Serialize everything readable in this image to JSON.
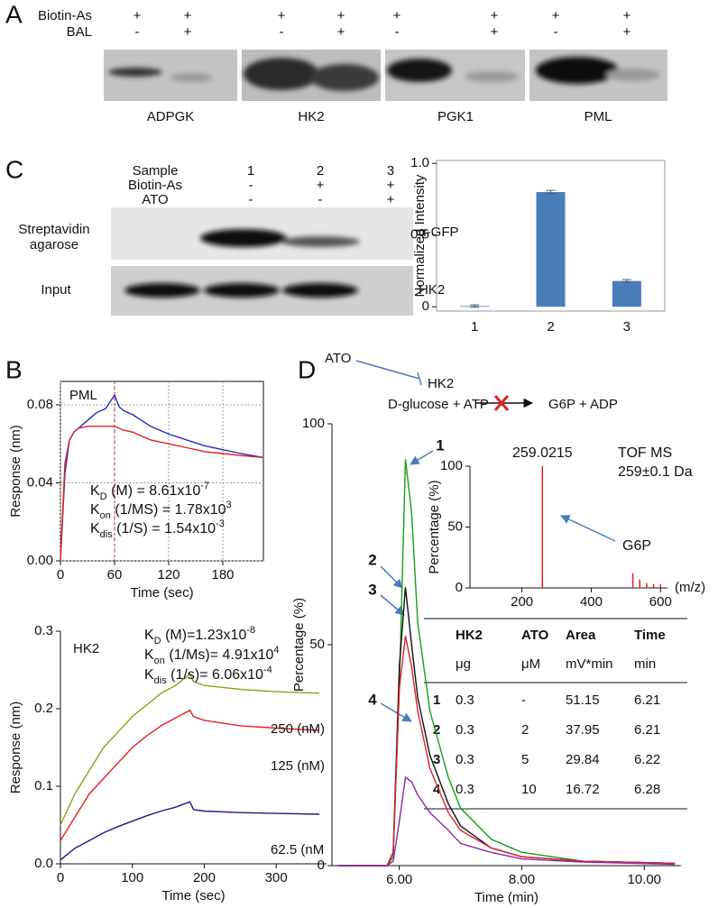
{
  "panel_labels": {
    "a": "A",
    "c": "C",
    "b": "B",
    "d": "D"
  },
  "panel_a": {
    "rows": [
      "Biotin-As",
      "BAL"
    ],
    "lanes": [
      [
        "+",
        "-"
      ],
      [
        "+",
        "+"
      ],
      [
        "+",
        "-"
      ],
      [
        "+",
        "+"
      ],
      [
        "+",
        "-"
      ],
      [
        "+",
        "+"
      ],
      [
        "+",
        "-"
      ],
      [
        "+",
        "+"
      ]
    ],
    "proteins": [
      "ADPGK",
      "HK2",
      "PGK1",
      "PML"
    ]
  },
  "panel_c_blot": {
    "rows": [
      "Sample",
      "Biotin-As",
      "ATO"
    ],
    "lanes": [
      [
        "1",
        "-",
        "-"
      ],
      [
        "2",
        "+",
        "-"
      ],
      [
        "3",
        "+",
        "+"
      ]
    ],
    "left_labels": [
      "Streptavidin",
      "agarose",
      "Input"
    ],
    "right_labels": [
      "α-GFP",
      "HK2"
    ]
  },
  "scheme": {
    "inhibitor": "ATO",
    "enzyme": "HK2",
    "substrates": "D-glucose + ATP",
    "products": "G6P + ADP"
  },
  "table": {
    "header": [
      "HK2",
      "ATO",
      "Area",
      "Time"
    ],
    "units": [
      "μg",
      "μM",
      "mV*min",
      "min"
    ],
    "rows": [
      [
        "1",
        0.3,
        "-",
        51.15,
        6.21
      ],
      [
        "2",
        0.3,
        2,
        37.95,
        6.21
      ],
      [
        "3",
        0.3,
        5,
        29.84,
        6.22
      ],
      [
        "4",
        0.3,
        10,
        16.72,
        6.28
      ]
    ]
  },
  "chart_data": [
    {
      "type": "bar",
      "y_label": "Normalized Intensity",
      "categories": [
        "1",
        "2",
        "3"
      ],
      "values": [
        0.005,
        0.8,
        0.18
      ],
      "errors": [
        0.008,
        0.012,
        0.01
      ],
      "color": "#4a7ebb",
      "ylim": [
        -0.03,
        1.02
      ],
      "yticks": [
        0,
        0.5,
        {
          "value": 1,
          "label": "1.0"
        }
      ],
      "grid": false
    },
    {
      "type": "line",
      "label": "PML",
      "x_label": "Time (sec)",
      "y_label": "Response (nm)",
      "x": [
        0,
        5,
        10,
        15,
        20,
        30,
        40,
        50,
        60,
        65,
        70,
        80,
        90,
        100,
        120,
        140,
        160,
        180,
        200,
        225
      ],
      "series": [
        {
          "color": "#1f2fbf",
          "values": [
            0,
            0.045,
            0.062,
            0.066,
            0.068,
            0.072,
            0.076,
            0.078,
            0.085,
            0.079,
            0.077,
            0.075,
            0.072,
            0.069,
            0.065,
            0.062,
            0.059,
            0.057,
            0.055,
            0.053
          ]
        },
        {
          "color": "#e02020",
          "values": [
            0,
            0.05,
            0.062,
            0.066,
            0.068,
            0.069,
            0.069,
            0.069,
            0.069,
            0.068,
            0.067,
            0.066,
            0.064,
            0.062,
            0.06,
            0.058,
            0.056,
            0.055,
            0.054,
            0.053
          ]
        }
      ],
      "vline": 60,
      "xlim": [
        0,
        225
      ],
      "ylim": [
        0,
        0.092
      ],
      "xticks": [
        0,
        60,
        120,
        180
      ],
      "yticks": [
        {
          "value": 0,
          "label": "0.00"
        },
        {
          "value": 0.04,
          "label": "0.04"
        },
        {
          "value": 0.08,
          "label": "0.08"
        }
      ],
      "grid": true,
      "annotations": [
        {
          "k": "K",
          "sub": "D",
          "mid": " (M) = 8.61x10",
          "sup": "-7"
        },
        {
          "k": "K",
          "sub": "on",
          "mid": " (1/MS) = 1.78x10",
          "sup": "3"
        },
        {
          "k": "K",
          "sub": "dis",
          "mid": " (1/S) = 1.54x10",
          "sup": "-3"
        }
      ]
    },
    {
      "type": "line",
      "label": "HK2",
      "x_label": "Time (sec)",
      "y_label": "Response (nm)",
      "x": [
        0,
        20,
        40,
        60,
        80,
        100,
        120,
        140,
        160,
        180,
        185,
        200,
        250,
        300,
        360
      ],
      "series": [
        {
          "name": "250 (nM)",
          "color": "#9a9a1e",
          "values": [
            0.05,
            0.09,
            0.12,
            0.15,
            0.17,
            0.19,
            0.205,
            0.22,
            0.23,
            0.245,
            0.235,
            0.23,
            0.225,
            0.222,
            0.22
          ]
        },
        {
          "name": "125 (nM)",
          "color": "#e82020",
          "values": [
            0.03,
            0.06,
            0.09,
            0.11,
            0.13,
            0.15,
            0.165,
            0.178,
            0.188,
            0.198,
            0.19,
            0.185,
            0.178,
            0.175,
            0.172
          ]
        },
        {
          "name": "62.5 (nM",
          "color": "#1a1a8c",
          "values": [
            0.005,
            0.02,
            0.03,
            0.04,
            0.048,
            0.055,
            0.062,
            0.068,
            0.073,
            0.08,
            0.07,
            0.068,
            0.066,
            0.065,
            0.064
          ]
        }
      ],
      "xlim": [
        0,
        370
      ],
      "ylim": [
        0,
        0.3
      ],
      "xticks": [
        0,
        100,
        200,
        300
      ],
      "yticks": [
        {
          "value": 0,
          "label": "0.0"
        },
        0.1,
        0.2,
        0.3
      ],
      "grid": false,
      "annotations": [
        {
          "k": "K",
          "sub": "D",
          "mid": " (M)=1.23x10",
          "sup": "-8"
        },
        {
          "k": "K",
          "sub": "on",
          "mid": " (1/Ms)= 4.91x10",
          "sup": "4"
        },
        {
          "k": "K",
          "sub": "dis",
          "mid": " (1/s)= 6.06x10",
          "sup": "-4"
        }
      ]
    },
    {
      "type": "line",
      "x_label": "Time (min)",
      "y_label": "Percentage (%)",
      "x": [
        5.0,
        5.8,
        5.9,
        6.0,
        6.1,
        6.2,
        6.3,
        6.5,
        6.8,
        7.0,
        7.5,
        8.0,
        9.0,
        10.5
      ],
      "series": [
        {
          "name": "1",
          "color": "#1e9a1e",
          "values": [
            0,
            0,
            2,
            40,
            92,
            80,
            55,
            35,
            20,
            13,
            6,
            3,
            1,
            0.5
          ]
        },
        {
          "name": "2",
          "color": "#111111",
          "values": [
            0,
            0,
            3,
            45,
            63,
            50,
            38,
            25,
            14,
            9,
            4,
            2,
            1,
            0.5
          ]
        },
        {
          "name": "3",
          "color": "#e02030",
          "values": [
            0,
            0,
            3,
            40,
            52,
            45,
            35,
            22,
            12,
            8,
            4,
            2,
            1,
            0.5
          ]
        },
        {
          "name": "4",
          "color": "#8a2aa8",
          "values": [
            0,
            0,
            1,
            10,
            20,
            19,
            16,
            12,
            8,
            5,
            3,
            1.5,
            0.8,
            0.3
          ]
        }
      ],
      "xlim": [
        4.9,
        10.6
      ],
      "ylim": [
        0,
        100
      ],
      "xticks": [
        {
          "value": 6,
          "label": "6.00"
        },
        {
          "value": 8,
          "label": "8.00"
        },
        {
          "value": 10,
          "label": "10.00"
        }
      ],
      "yticks": [
        0,
        50,
        100
      ],
      "grid": false
    },
    {
      "type": "stem",
      "y_label": "Percentage (%)",
      "x_unit": "(m/z)",
      "x": [
        259.0215,
        520,
        540,
        560,
        580,
        600
      ],
      "values": [
        100,
        12,
        7,
        4,
        3,
        3
      ],
      "color": "#e02020",
      "peak_label": "259.0215",
      "notes": [
        "TOF MS",
        "259±0.1 Da"
      ],
      "arrow_label": "G6P",
      "xlim": [
        50,
        620
      ],
      "ylim": [
        0,
        100
      ],
      "xticks": [
        200,
        400,
        600
      ],
      "yticks": [
        0,
        50,
        100
      ],
      "grid": false
    }
  ]
}
